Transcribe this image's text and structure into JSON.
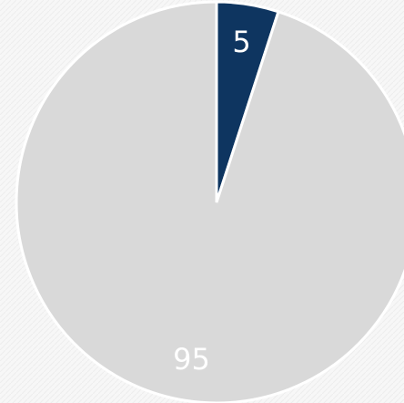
{
  "chart_data": {
    "type": "pie",
    "values": [
      5,
      95
    ],
    "colors": [
      "#0e3560",
      "#d9d9d9"
    ]
  }
}
